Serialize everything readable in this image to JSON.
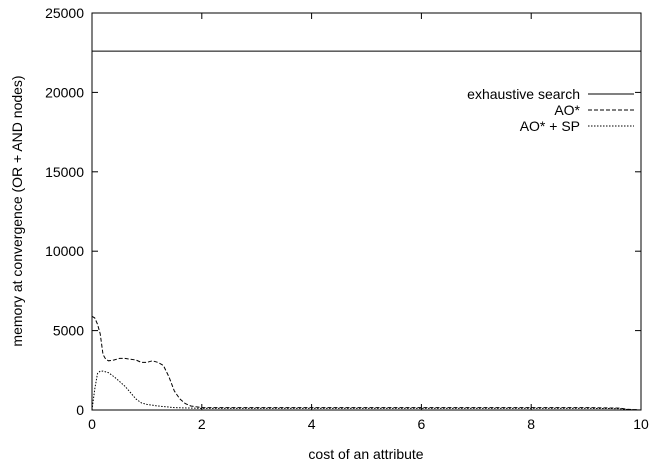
{
  "chart_data": {
    "type": "line",
    "xlabel": "cost of an attribute",
    "ylabel": "memory at convergence (OR + AND nodes)",
    "xlim": [
      0,
      10
    ],
    "ylim": [
      0,
      25000
    ],
    "x_ticks": [
      0,
      2,
      4,
      6,
      8,
      10
    ],
    "y_ticks": [
      0,
      5000,
      10000,
      15000,
      20000,
      25000
    ],
    "x_tick_labels": [
      "0",
      "2",
      "4",
      "6",
      "8",
      "10"
    ],
    "y_tick_labels": [
      "0",
      "5000",
      "10000",
      "15000",
      "20000",
      "25000"
    ],
    "grid": false,
    "legend_position": "top-right",
    "series": [
      {
        "name": "exhaustive search",
        "dash": "solid",
        "x": [
          0,
          10
        ],
        "y": [
          22600,
          22600
        ]
      },
      {
        "name": "AO*",
        "dash": "dashed",
        "x": [
          0,
          0.05,
          0.1,
          0.15,
          0.2,
          0.25,
          0.3,
          0.4,
          0.5,
          0.6,
          0.7,
          0.8,
          0.9,
          1.0,
          1.1,
          1.2,
          1.3,
          1.4,
          1.5,
          1.6,
          1.7,
          1.8,
          2.0,
          3.0,
          4.0,
          5.0,
          6.0,
          7.0,
          8.0,
          9.0,
          9.6,
          9.75,
          10.0
        ],
        "y": [
          5900,
          5800,
          5400,
          4800,
          3500,
          3200,
          3100,
          3150,
          3250,
          3250,
          3200,
          3150,
          3000,
          3000,
          3100,
          3000,
          2800,
          2100,
          1200,
          700,
          400,
          250,
          150,
          150,
          150,
          150,
          150,
          150,
          150,
          150,
          120,
          50,
          0
        ]
      },
      {
        "name": "AO* + SP",
        "dash": "dotted",
        "x": [
          0,
          0.05,
          0.1,
          0.15,
          0.2,
          0.25,
          0.3,
          0.4,
          0.5,
          0.6,
          0.7,
          0.8,
          0.9,
          1.0,
          1.2,
          1.5,
          2.0,
          3.0,
          5.0,
          7.0,
          9.0,
          9.6,
          9.75,
          10.0
        ],
        "y": [
          0,
          1300,
          2300,
          2450,
          2450,
          2400,
          2350,
          2100,
          1800,
          1500,
          1100,
          700,
          450,
          350,
          250,
          150,
          100,
          100,
          100,
          100,
          100,
          90,
          30,
          0
        ]
      }
    ]
  }
}
